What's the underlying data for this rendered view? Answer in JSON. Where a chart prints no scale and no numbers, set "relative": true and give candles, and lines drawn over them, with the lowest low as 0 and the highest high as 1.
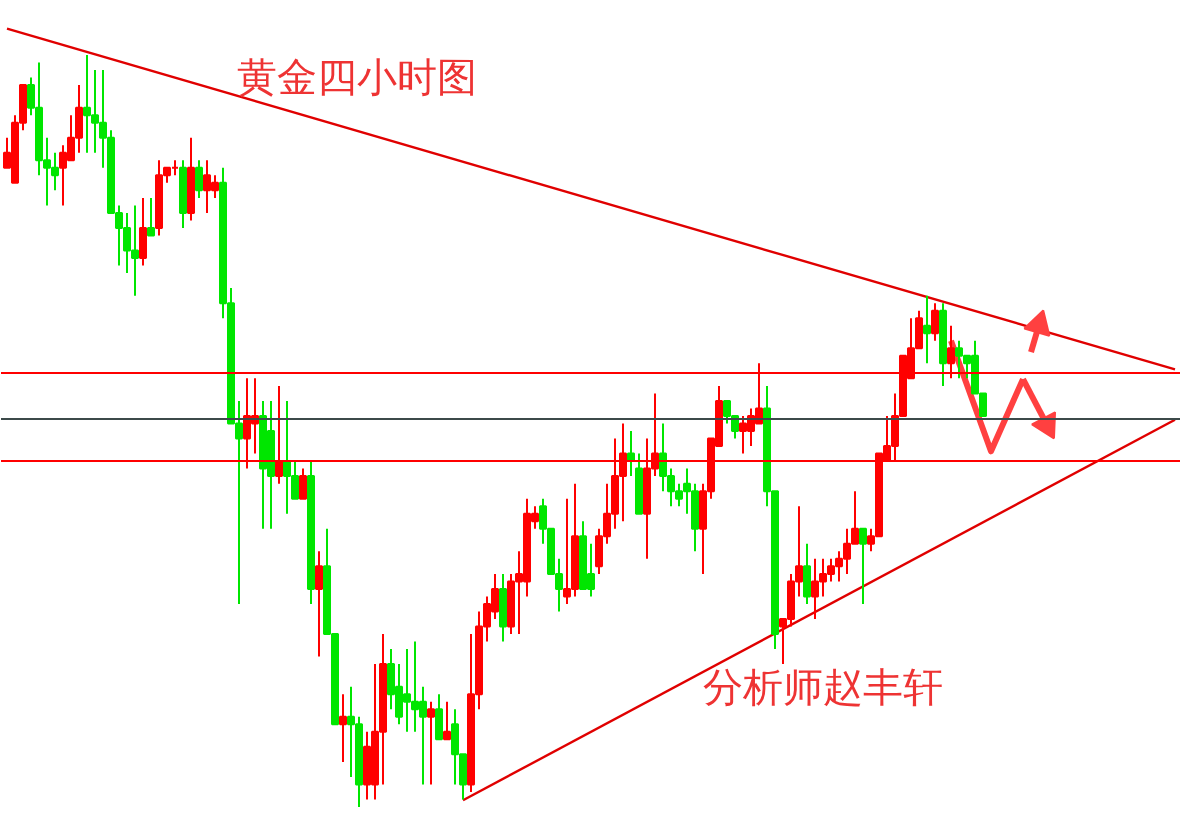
{
  "chart_data": {
    "type": "candlestick",
    "relative": true,
    "title": "黄金四小时图",
    "annotations": [
      "分析师赵丰轩"
    ],
    "categories": [
      null,
      null,
      null,
      null,
      null,
      null,
      null,
      null,
      null,
      null,
      null,
      null,
      null,
      null,
      null,
      null,
      null,
      null,
      null,
      null,
      null,
      null,
      null,
      null,
      null,
      null,
      null,
      null,
      null,
      null,
      null,
      null,
      null,
      null,
      null,
      null,
      null,
      null,
      null,
      null,
      null,
      null,
      null,
      null,
      null,
      null,
      null,
      null,
      null,
      null,
      null,
      null,
      null,
      null,
      null,
      null,
      null,
      null,
      null,
      null,
      null,
      null,
      null,
      null,
      null,
      null,
      null,
      null,
      null,
      null,
      null,
      null,
      null,
      null,
      null,
      null,
      null,
      null,
      null,
      null,
      null,
      null,
      null,
      null,
      null,
      null,
      null,
      null,
      null,
      null,
      null,
      null,
      null,
      null,
      null,
      null,
      null,
      null,
      null,
      null,
      null,
      null,
      null,
      null,
      null,
      null,
      null,
      null,
      null,
      null,
      null,
      null,
      null,
      null,
      null,
      null,
      null,
      null,
      null,
      null,
      null,
      null,
      null,
      null,
      null,
      null,
      null,
      null,
      null,
      null,
      null,
      null,
      null,
      null,
      null,
      null,
      null,
      null,
      null,
      null,
      null,
      null,
      null,
      null,
      null,
      null,
      null
    ],
    "ohlc": [
      [
        0.85,
        0.89,
        0.85,
        0.87
      ],
      [
        0.83,
        0.92,
        0.83,
        0.91
      ],
      [
        0.91,
        0.96,
        0.9,
        0.96
      ],
      [
        0.96,
        0.97,
        0.92,
        0.93
      ],
      [
        0.93,
        0.99,
        0.84,
        0.86
      ],
      [
        0.86,
        0.89,
        0.8,
        0.85
      ],
      [
        0.85,
        0.87,
        0.82,
        0.84
      ],
      [
        0.85,
        0.88,
        0.8,
        0.87
      ],
      [
        0.86,
        0.92,
        0.86,
        0.89
      ],
      [
        0.89,
        0.96,
        0.87,
        0.93
      ],
      [
        0.93,
        1.0,
        0.87,
        0.92
      ],
      [
        0.92,
        0.98,
        0.87,
        0.91
      ],
      [
        0.91,
        0.98,
        0.85,
        0.89
      ],
      [
        0.89,
        0.9,
        0.79,
        0.79
      ],
      [
        0.79,
        0.8,
        0.72,
        0.77
      ],
      [
        0.77,
        0.79,
        0.71,
        0.74
      ],
      [
        0.74,
        0.8,
        0.68,
        0.73
      ],
      [
        0.73,
        0.81,
        0.72,
        0.77
      ],
      [
        0.77,
        0.81,
        0.76,
        0.76
      ],
      [
        0.77,
        0.86,
        0.76,
        0.84
      ],
      [
        0.84,
        0.85,
        0.83,
        0.85
      ],
      [
        0.85,
        0.86,
        0.84,
        0.85
      ],
      [
        0.85,
        0.86,
        0.77,
        0.79
      ],
      [
        0.79,
        0.89,
        0.78,
        0.85
      ],
      [
        0.85,
        0.86,
        0.81,
        0.82
      ],
      [
        0.82,
        0.86,
        0.79,
        0.84
      ],
      [
        0.82,
        0.84,
        0.81,
        0.83
      ],
      [
        0.83,
        0.85,
        0.65,
        0.67
      ],
      [
        0.67,
        0.69,
        0.51,
        0.51
      ],
      [
        0.51,
        0.54,
        0.27,
        0.49
      ],
      [
        0.49,
        0.57,
        0.45,
        0.52
      ],
      [
        0.51,
        0.57,
        0.47,
        0.52
      ],
      [
        0.52,
        0.54,
        0.37,
        0.45
      ],
      [
        0.5,
        0.54,
        0.37,
        0.44
      ],
      [
        0.44,
        0.56,
        0.43,
        0.46
      ],
      [
        0.46,
        0.54,
        0.39,
        0.44
      ],
      [
        0.44,
        0.46,
        0.41,
        0.41
      ],
      [
        0.41,
        0.45,
        0.41,
        0.44
      ],
      [
        0.44,
        0.46,
        0.27,
        0.29
      ],
      [
        0.29,
        0.34,
        0.2,
        0.32
      ],
      [
        0.32,
        0.37,
        0.23,
        0.23
      ],
      [
        0.23,
        0.23,
        0.11,
        0.11
      ],
      [
        0.11,
        0.15,
        0.06,
        0.12
      ],
      [
        0.12,
        0.16,
        0.04,
        0.11
      ],
      [
        0.11,
        0.12,
        0.0,
        0.03
      ],
      [
        0.03,
        0.1,
        0.01,
        0.08
      ],
      [
        0.03,
        0.19,
        0.01,
        0.1
      ],
      [
        0.1,
        0.23,
        0.03,
        0.19
      ],
      [
        0.19,
        0.21,
        0.13,
        0.15
      ],
      [
        0.16,
        0.19,
        0.11,
        0.12
      ],
      [
        0.15,
        0.21,
        0.1,
        0.14
      ],
      [
        0.14,
        0.22,
        0.1,
        0.13
      ],
      [
        0.14,
        0.16,
        0.03,
        0.12
      ],
      [
        0.12,
        0.14,
        0.03,
        0.13
      ],
      [
        0.13,
        0.15,
        0.09,
        0.09
      ],
      [
        0.09,
        0.14,
        0.09,
        0.1
      ],
      [
        0.11,
        0.13,
        0.03,
        0.07
      ],
      [
        0.07,
        0.07,
        0.01,
        0.03
      ],
      [
        0.03,
        0.23,
        0.02,
        0.15
      ],
      [
        0.15,
        0.26,
        0.13,
        0.24
      ],
      [
        0.24,
        0.28,
        0.22,
        0.27
      ],
      [
        0.26,
        0.31,
        0.25,
        0.29
      ],
      [
        0.29,
        0.31,
        0.22,
        0.24
      ],
      [
        0.24,
        0.31,
        0.23,
        0.3
      ],
      [
        0.3,
        0.34,
        0.23,
        0.31
      ],
      [
        0.3,
        0.41,
        0.28,
        0.39
      ],
      [
        0.38,
        0.4,
        0.37,
        0.39
      ],
      [
        0.4,
        0.41,
        0.35,
        0.37
      ],
      [
        0.37,
        0.37,
        0.31,
        0.31
      ],
      [
        0.31,
        0.33,
        0.26,
        0.29
      ],
      [
        0.28,
        0.41,
        0.27,
        0.29
      ],
      [
        0.29,
        0.43,
        0.28,
        0.36
      ],
      [
        0.36,
        0.38,
        0.29,
        0.29
      ],
      [
        0.31,
        0.35,
        0.28,
        0.29
      ],
      [
        0.32,
        0.37,
        0.31,
        0.36
      ],
      [
        0.36,
        0.43,
        0.35,
        0.39
      ],
      [
        0.39,
        0.49,
        0.37,
        0.44
      ],
      [
        0.44,
        0.51,
        0.38,
        0.47
      ],
      [
        0.47,
        0.5,
        0.44,
        0.46
      ],
      [
        0.45,
        0.47,
        0.39,
        0.39
      ],
      [
        0.39,
        0.49,
        0.33,
        0.45
      ],
      [
        0.45,
        0.55,
        0.44,
        0.47
      ],
      [
        0.47,
        0.51,
        0.42,
        0.44
      ],
      [
        0.44,
        0.45,
        0.4,
        0.42
      ],
      [
        0.42,
        0.43,
        0.4,
        0.41
      ],
      [
        0.43,
        0.45,
        0.39,
        0.42
      ],
      [
        0.42,
        0.43,
        0.34,
        0.37
      ],
      [
        0.37,
        0.43,
        0.31,
        0.42
      ],
      [
        0.42,
        0.49,
        0.41,
        0.49
      ],
      [
        0.48,
        0.56,
        0.48,
        0.54
      ],
      [
        0.54,
        0.54,
        0.51,
        0.52
      ],
      [
        0.52,
        0.52,
        0.49,
        0.5
      ],
      [
        0.5,
        0.52,
        0.47,
        0.51
      ],
      [
        0.5,
        0.53,
        0.48,
        0.52
      ],
      [
        0.51,
        0.59,
        0.51,
        0.53
      ],
      [
        0.53,
        0.56,
        0.4,
        0.42
      ],
      [
        0.42,
        0.42,
        0.21,
        0.23
      ],
      [
        0.24,
        0.25,
        0.19,
        0.25
      ],
      [
        0.25,
        0.31,
        0.24,
        0.3
      ],
      [
        0.3,
        0.4,
        0.28,
        0.32
      ],
      [
        0.32,
        0.35,
        0.27,
        0.28
      ],
      [
        0.28,
        0.33,
        0.25,
        0.3
      ],
      [
        0.3,
        0.33,
        0.28,
        0.31
      ],
      [
        0.31,
        0.33,
        0.3,
        0.32
      ],
      [
        0.32,
        0.34,
        0.3,
        0.33
      ],
      [
        0.33,
        0.37,
        0.31,
        0.35
      ],
      [
        0.35,
        0.42,
        0.35,
        0.37
      ],
      [
        0.37,
        0.37,
        0.27,
        0.35
      ],
      [
        0.35,
        0.37,
        0.34,
        0.36
      ],
      [
        0.36,
        0.47,
        0.36,
        0.47
      ],
      [
        0.46,
        0.52,
        0.46,
        0.48
      ],
      [
        0.48,
        0.55,
        0.46,
        0.52
      ],
      [
        0.52,
        0.6,
        0.52,
        0.6
      ],
      [
        0.57,
        0.65,
        0.57,
        0.61
      ],
      [
        0.61,
        0.66,
        0.61,
        0.65
      ],
      [
        0.64,
        0.68,
        0.59,
        0.63
      ],
      [
        0.63,
        0.67,
        0.62,
        0.66
      ],
      [
        0.66,
        0.67,
        0.56,
        0.59
      ],
      [
        0.59,
        0.64,
        0.57,
        0.61
      ],
      [
        0.61,
        0.62,
        0.57,
        0.6
      ],
      [
        0.6,
        0.6,
        0.57,
        0.59
      ],
      [
        0.6,
        0.62,
        0.55,
        0.55
      ],
      [
        0.55,
        0.55,
        0.52,
        0.52
      ],
      null,
      null,
      null,
      null,
      null,
      null,
      null,
      null,
      null,
      null,
      null,
      null,
      null,
      null,
      null,
      null,
      null,
      null,
      null,
      null,
      null,
      null,
      null,
      null
    ],
    "colors": [
      "#ff0000",
      "#ff0000",
      "#ff0000",
      "#00e600",
      "#00e600",
      "#00e600",
      "#00e600",
      "#ff0000",
      "#ff0000",
      "#ff0000",
      "#00e600",
      "#00e600",
      "#00e600",
      "#00e600",
      "#00e600",
      "#00e600",
      "#00e600",
      "#ff0000",
      "#00e600",
      "#ff0000",
      "#ff0000",
      "#ff0000",
      "#00e600",
      "#ff0000",
      "#00e600",
      "#ff0000",
      "#ff0000",
      "#00e600",
      "#00e600",
      "#00e600",
      "#ff0000",
      "#ff0000",
      "#00e600",
      "#00e600",
      "#ff0000",
      "#00e600",
      "#00e600",
      "#ff0000",
      "#00e600",
      "#ff0000",
      "#00e600",
      "#00e600",
      "#ff0000",
      "#00e600",
      "#00e600",
      "#ff0000",
      "#ff0000",
      "#ff0000",
      "#00e600",
      "#00e600",
      "#00e600",
      "#00e600",
      "#00e600",
      "#ff0000",
      "#00e600",
      "#ff0000",
      "#00e600",
      "#00e600",
      "#ff0000",
      "#ff0000",
      "#ff0000",
      "#ff0000",
      "#00e600",
      "#ff0000",
      "#ff0000",
      "#ff0000",
      "#ff0000",
      "#00e600",
      "#00e600",
      "#00e600",
      "#ff0000",
      "#ff0000",
      "#00e600",
      "#00e600",
      "#ff0000",
      "#ff0000",
      "#ff0000",
      "#ff0000",
      "#00e600",
      "#00e600",
      "#ff0000",
      "#ff0000",
      "#00e600",
      "#00e600",
      "#00e600",
      "#00e600",
      "#00e600",
      "#ff0000",
      "#ff0000",
      "#ff0000",
      "#00e600",
      "#00e600",
      "#ff0000",
      "#ff0000",
      "#ff0000",
      "#00e600",
      "#00e600",
      "#ff0000",
      "#ff0000",
      "#ff0000",
      "#00e600",
      "#ff0000",
      "#ff0000",
      "#ff0000",
      "#ff0000",
      "#ff0000",
      "#ff0000",
      "#00e600",
      "#ff0000",
      "#ff0000",
      "#ff0000",
      "#ff0000",
      "#ff0000",
      "#ff0000",
      "#ff0000",
      "#00e600",
      "#ff0000",
      "#00e600",
      "#ff0000",
      "#00e600",
      "#00e600",
      "#00e600",
      "#00e600",
      null,
      null,
      null,
      null,
      null,
      null,
      null,
      null,
      null,
      null,
      null,
      null,
      null,
      null,
      null,
      null,
      null,
      null,
      null,
      null,
      null,
      null,
      null,
      null
    ],
    "series": [
      {
        "type": "line",
        "color": "#e00000",
        "values": [
          1.035,
          null,
          null,
          null,
          null,
          null,
          null,
          null,
          null,
          null,
          null,
          null,
          null,
          null,
          null,
          null,
          null,
          null,
          null,
          null,
          null,
          null,
          null,
          null,
          null,
          null,
          null,
          null,
          null,
          null,
          null,
          null,
          null,
          null,
          null,
          null,
          null,
          null,
          null,
          null,
          null,
          null,
          null,
          null,
          null,
          null,
          null,
          null,
          null,
          null,
          null,
          null,
          null,
          null,
          null,
          null,
          null,
          null,
          null,
          null,
          null,
          null,
          null,
          null,
          null,
          null,
          null,
          null,
          null,
          null,
          null,
          null,
          null,
          null,
          null,
          null,
          null,
          null,
          null,
          null,
          null,
          null,
          null,
          null,
          null,
          null,
          null,
          null,
          null,
          null,
          null,
          null,
          null,
          null,
          null,
          null,
          null,
          null,
          null,
          null,
          null,
          null,
          null,
          null,
          null,
          null,
          null,
          null,
          null,
          null,
          null,
          null,
          null,
          null,
          null,
          null,
          null,
          null,
          null,
          null,
          null,
          null,
          null,
          null,
          null,
          null,
          null,
          null,
          null,
          null,
          null,
          null,
          null,
          null,
          null,
          null,
          null,
          null,
          null,
          null,
          null,
          null,
          null,
          null,
          null,
          null,
          0.582
        ]
      },
      {
        "type": "line",
        "color": "#e00000",
        "values": [
          null,
          null,
          null,
          null,
          null,
          null,
          null,
          null,
          null,
          null,
          null,
          null,
          null,
          null,
          null,
          null,
          null,
          null,
          null,
          null,
          null,
          null,
          null,
          null,
          null,
          null,
          null,
          null,
          null,
          null,
          null,
          null,
          null,
          null,
          null,
          null,
          null,
          null,
          null,
          null,
          null,
          null,
          null,
          null,
          null,
          null,
          null,
          null,
          null,
          null,
          null,
          null,
          null,
          null,
          null,
          null,
          null,
          0.009,
          null,
          null,
          null,
          null,
          null,
          null,
          null,
          null,
          null,
          null,
          null,
          null,
          null,
          null,
          null,
          null,
          null,
          null,
          null,
          null,
          null,
          null,
          null,
          null,
          null,
          null,
          null,
          null,
          null,
          null,
          null,
          null,
          null,
          null,
          null,
          null,
          null,
          null,
          null,
          null,
          null,
          null,
          null,
          null,
          null,
          null,
          null,
          null,
          null,
          null,
          null,
          null,
          null,
          null,
          null,
          null,
          null,
          null,
          null,
          null,
          null,
          null,
          null,
          null,
          null,
          null,
          null,
          null,
          null,
          null,
          null,
          null,
          null,
          null,
          null,
          null,
          null,
          null,
          null,
          null,
          null,
          null,
          null,
          null,
          null,
          null,
          null,
          null,
          0.515
        ]
      },
      {
        "type": "line",
        "color": "#ff4040",
        "marker": "none",
        "values": [
          null,
          null,
          null,
          null,
          null,
          null,
          null,
          null,
          null,
          null,
          null,
          null,
          null,
          null,
          null,
          null,
          null,
          null,
          null,
          null,
          null,
          null,
          null,
          null,
          null,
          null,
          null,
          null,
          null,
          null,
          null,
          null,
          null,
          null,
          null,
          null,
          null,
          null,
          null,
          null,
          null,
          null,
          null,
          null,
          null,
          null,
          null,
          null,
          null,
          null,
          null,
          null,
          null,
          null,
          null,
          null,
          null,
          null,
          null,
          null,
          null,
          null,
          null,
          null,
          null,
          null,
          null,
          null,
          null,
          null,
          null,
          null,
          null,
          null,
          null,
          null,
          null,
          null,
          null,
          null,
          null,
          null,
          null,
          null,
          null,
          null,
          null,
          null,
          null,
          null,
          null,
          null,
          null,
          null,
          null,
          null,
          null,
          null,
          null,
          null,
          null,
          null,
          null,
          null,
          null,
          null,
          null,
          null,
          null,
          null,
          null,
          null,
          null,
          null,
          null,
          null,
          null,
          null,
          0.62,
          null,
          null,
          null,
          null,
          0.473,
          null,
          null,
          null,
          0.569,
          null,
          null,
          null,
          null,
          null,
          null,
          null,
          null,
          null,
          null,
          null,
          null,
          null,
          null,
          null,
          null,
          null,
          null,
          null
        ]
      },
      {
        "type": "line",
        "color": "#ff4040",
        "marker": "triangle",
        "values": [
          null,
          null,
          null,
          null,
          null,
          null,
          null,
          null,
          null,
          null,
          null,
          null,
          null,
          null,
          null,
          null,
          null,
          null,
          null,
          null,
          null,
          null,
          null,
          null,
          null,
          null,
          null,
          null,
          null,
          null,
          null,
          null,
          null,
          null,
          null,
          null,
          null,
          null,
          null,
          null,
          null,
          null,
          null,
          null,
          null,
          null,
          null,
          null,
          null,
          null,
          null,
          null,
          null,
          null,
          null,
          null,
          null,
          null,
          null,
          null,
          null,
          null,
          null,
          null,
          null,
          null,
          null,
          null,
          null,
          null,
          null,
          null,
          null,
          null,
          null,
          null,
          null,
          null,
          null,
          null,
          null,
          null,
          null,
          null,
          null,
          null,
          null,
          null,
          null,
          null,
          null,
          null,
          null,
          null,
          null,
          null,
          null,
          null,
          null,
          null,
          null,
          null,
          null,
          null,
          null,
          null,
          null,
          null,
          null,
          null,
          null,
          null,
          null,
          null,
          null,
          null,
          null,
          null,
          null,
          null,
          null,
          null,
          null,
          null,
          null,
          null,
          null,
          null,
          0.605,
          0.641,
          null,
          null,
          null,
          null,
          null,
          null,
          null,
          null,
          null,
          null,
          null,
          null,
          null,
          null,
          null,
          null,
          null
        ]
      },
      {
        "type": "line",
        "color": "#ff4040",
        "marker": "triangle",
        "values": [
          null,
          null,
          null,
          null,
          null,
          null,
          null,
          null,
          null,
          null,
          null,
          null,
          null,
          null,
          null,
          null,
          null,
          null,
          null,
          null,
          null,
          null,
          null,
          null,
          null,
          null,
          null,
          null,
          null,
          null,
          null,
          null,
          null,
          null,
          null,
          null,
          null,
          null,
          null,
          null,
          null,
          null,
          null,
          null,
          null,
          null,
          null,
          null,
          null,
          null,
          null,
          null,
          null,
          null,
          null,
          null,
          null,
          null,
          null,
          null,
          null,
          null,
          null,
          null,
          null,
          null,
          null,
          null,
          null,
          null,
          null,
          null,
          null,
          null,
          null,
          null,
          null,
          null,
          null,
          null,
          null,
          null,
          null,
          null,
          null,
          null,
          null,
          null,
          null,
          null,
          null,
          null,
          null,
          null,
          null,
          null,
          null,
          null,
          null,
          null,
          null,
          null,
          null,
          null,
          null,
          null,
          null,
          null,
          null,
          null,
          null,
          null,
          null,
          null,
          null,
          null,
          null,
          null,
          null,
          null,
          null,
          null,
          null,
          null,
          null,
          null,
          null,
          0.569,
          null,
          null,
          0.508,
          null,
          null,
          null,
          null,
          null,
          null,
          null,
          null,
          null,
          null,
          null,
          null,
          null,
          null,
          null,
          null
        ]
      }
    ],
    "ref_lines": [
      {
        "axis": "y",
        "value": 0.577,
        "color": "#ff0000"
      },
      {
        "axis": "y",
        "value": 0.516,
        "color": "#3c4a4a"
      },
      {
        "axis": "y",
        "value": 0.46,
        "color": "#ff0000"
      }
    ]
  }
}
